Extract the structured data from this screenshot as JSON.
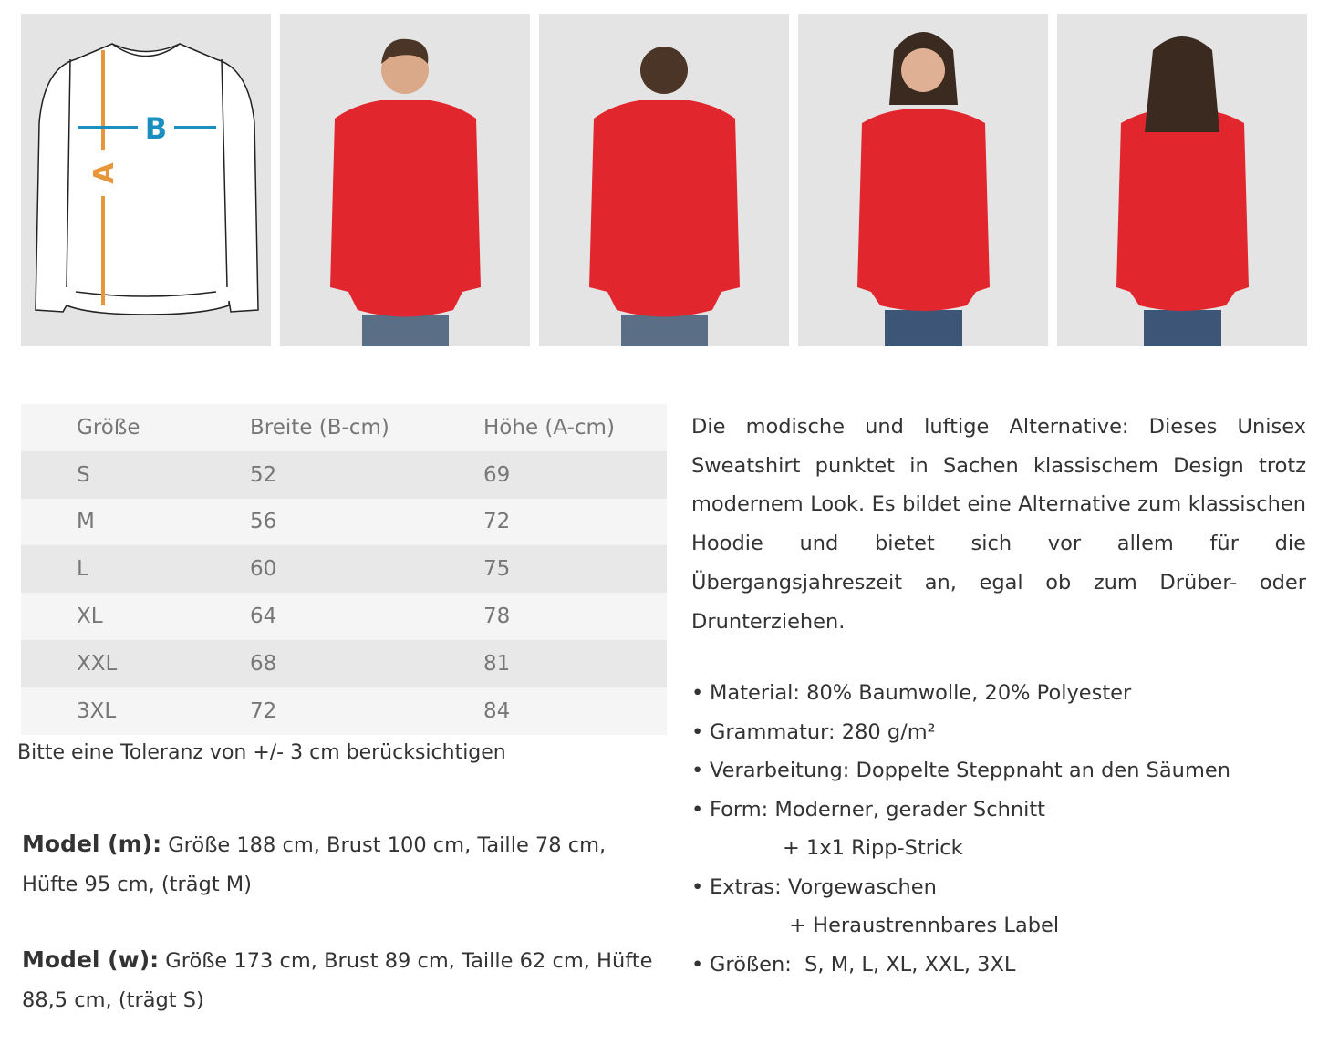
{
  "diagram": {
    "label_a": "A",
    "label_b": "B",
    "color_a": "#e8963a",
    "color_b": "#1a8fc0"
  },
  "photos": [
    {
      "view": "man-front"
    },
    {
      "view": "man-back"
    },
    {
      "view": "woman-front"
    },
    {
      "view": "woman-back"
    }
  ],
  "sweatshirt_color": "#e2262d",
  "size_table": {
    "headers": [
      "Größe",
      "Breite (B-cm)",
      "Höhe (A-cm)"
    ],
    "rows": [
      [
        "S",
        "52",
        "69"
      ],
      [
        "M",
        "56",
        "72"
      ],
      [
        "L",
        "60",
        "75"
      ],
      [
        "XL",
        "64",
        "78"
      ],
      [
        "XXL",
        "68",
        "81"
      ],
      [
        "3XL",
        "72",
        "84"
      ]
    ]
  },
  "tolerance": "Bitte eine Toleranz von +/- 3 cm berücksichtigen",
  "model_m": {
    "label": "Model (m):",
    "text": " Größe 188 cm, Brust 100 cm, Taille 78 cm, Hüfte 95 cm, (trägt M)"
  },
  "model_w": {
    "label": "Model (w):",
    "text": " Größe 173 cm, Brust 89 cm, Taille 62 cm, Hüfte 88,5 cm, (trägt S)"
  },
  "description": "Die modische und luftige Alternative: Dieses Unisex Sweatshirt punktet in Sachen klassischem Design trotz modernem Look. Es bildet eine Alternative zum klassischen Hoodie und bietet sich vor allem für die Übergangsjahreszeit an, egal ob zum Drüber- oder Drunterziehen.",
  "features": [
    {
      "text": "Material: 80% Baumwolle, 20% Polyester"
    },
    {
      "text": "Grammatur: 280 g/m²"
    },
    {
      "text": "Verarbeitung: Doppelte Steppnaht an den Säumen"
    },
    {
      "text": "Form: Moderner, gerader Schnitt",
      "cont": "+ 1x1 Ripp-Strick"
    },
    {
      "text": "Extras: Vorgewaschen",
      "cont": " + Heraustrennbares Label"
    },
    {
      "text": "Größen:  S, M, L, XL, XXL, 3XL"
    }
  ],
  "bullet": "•"
}
